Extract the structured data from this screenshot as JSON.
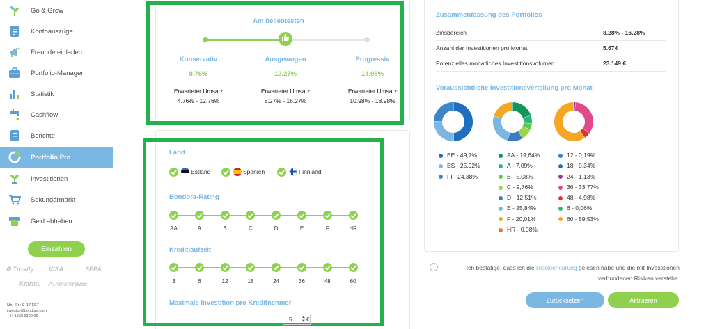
{
  "sidebar": {
    "items": [
      {
        "label": "Go & Grow",
        "icon": "plant-grow-icon"
      },
      {
        "label": "Kontoauszüge",
        "icon": "document-icon"
      },
      {
        "label": "Freunde einladen",
        "icon": "megaphone-icon"
      },
      {
        "label": "Portfolio-Manager",
        "icon": "briefcase-icon"
      },
      {
        "label": "Statistik",
        "icon": "bar-chart-icon"
      },
      {
        "label": "Cashflow",
        "icon": "faucet-icon"
      },
      {
        "label": "Berichte",
        "icon": "report-icon"
      },
      {
        "label": "Portfolio Pro",
        "icon": "pie-icon",
        "active": true
      },
      {
        "label": "Investitionen",
        "icon": "sprout-icon"
      },
      {
        "label": "Sekundärmarkt",
        "icon": "cart-icon"
      },
      {
        "label": "Geld abheben",
        "icon": "atm-icon"
      }
    ],
    "deposit_button": "Einzahlen",
    "payment_logos": [
      "Trustly",
      "VISA",
      "SEPA",
      "Klarna.",
      "TransferWise"
    ],
    "contact": {
      "hours": "Mo.–Fr.: 9–17 EET",
      "email": "investor@bondora.com",
      "phone": "+44 1568 6300 06"
    }
  },
  "risk_profile": {
    "title": "Am beliebtesten",
    "options": [
      {
        "name": "Konservativ",
        "rate": "8.76%",
        "label": "Erwarteter Umsatz",
        "range": "4.76% - 12.76%"
      },
      {
        "name": "Ausgewogen",
        "rate": "12.27%",
        "label": "Erwarteter Umsatz",
        "range": "8.27% - 16.27%"
      },
      {
        "name": "Progressiv",
        "rate": "14.98%",
        "label": "Erwarteter Umsatz",
        "range": "10.98% - 18.98%"
      }
    ],
    "selected_index": 1
  },
  "filters": {
    "country_title": "Land",
    "countries": [
      "Estland",
      "Spanien",
      "Finnland"
    ],
    "rating_title": "Bondora-Rating",
    "ratings": [
      "AA",
      "A",
      "B",
      "C",
      "D",
      "E",
      "F",
      "HR"
    ],
    "term_title": "Kreditlaufzeit",
    "terms": [
      "3",
      "6",
      "12",
      "18",
      "24",
      "36",
      "48",
      "60"
    ],
    "max_title": "Maximale Investition pro Kreditnehmer",
    "max_value": "5",
    "currency": "€"
  },
  "summary": {
    "title": "Zusammenfassung des Portfolios",
    "rows": [
      {
        "label": "Zinsbereich",
        "value": "8.28% - 16.28%"
      },
      {
        "label": "Anzahl der Investitionen pro Monat",
        "value": "5.674"
      },
      {
        "label": "Potenzielles monatliches Investitionsvolumen",
        "value": "23.149 €"
      }
    ],
    "distribution_title": "Voraussichtliche Investitionsverteilung pro Monat"
  },
  "chart_data": [
    {
      "type": "pie",
      "labels": [
        "EE",
        "ES",
        "FI"
      ],
      "values": [
        49.7,
        25.92,
        24.38
      ],
      "legend_text": [
        "EE - 49,7%",
        "ES - 25,92%",
        "FI - 24,38%"
      ],
      "colors": [
        "#1f6fbf",
        "#7ab7e3",
        "#3a86c8"
      ]
    },
    {
      "type": "pie",
      "labels": [
        "AA",
        "A",
        "B",
        "C",
        "D",
        "E",
        "F",
        "HR"
      ],
      "values": [
        19.64,
        7.09,
        5.08,
        9.76,
        12.51,
        25.84,
        20.01,
        0.08
      ],
      "legend_text": [
        "AA - 19,64%",
        "A - 7,09%",
        "B - 5,08%",
        "C - 9,76%",
        "D - 12,51%",
        "E - 25,84%",
        "F - 20,01%",
        "HR - 0,08%"
      ],
      "colors": [
        "#13965a",
        "#2bb673",
        "#5fc94d",
        "#9bd44a",
        "#3b7bbf",
        "#7ab7e3",
        "#f5a623",
        "#e8702a"
      ]
    },
    {
      "type": "pie",
      "labels": [
        "12",
        "18",
        "24",
        "36",
        "48",
        "6",
        "60"
      ],
      "values": [
        0.19,
        0.34,
        1.13,
        33.77,
        4.98,
        0.06,
        59.53
      ],
      "legend_text": [
        "12 - 0,19%",
        "18 - 0,34%",
        "24 - 1,13%",
        "36 - 33,77%",
        "48 - 4,98%",
        "6 - 0,06%",
        "60 - 59,53%"
      ],
      "colors": [
        "#3a86c8",
        "#1f6fbf",
        "#8e3aa8",
        "#e04a8a",
        "#d9352b",
        "#2bb673",
        "#f5a623"
      ]
    }
  ],
  "consent": {
    "before": "Ich bestätige, dass ich die ",
    "link": "Risikoerklärung",
    "after": " gelesen habe und die mit Investitionen verbundenen Risiken verstehe."
  },
  "buttons": {
    "reset": "Zurücksetzen",
    "activate": "Aktivieren"
  },
  "colors": {
    "accent_blue": "#7ab7e3",
    "accent_green": "#8fd14f",
    "frame_green": "#22b14c"
  }
}
